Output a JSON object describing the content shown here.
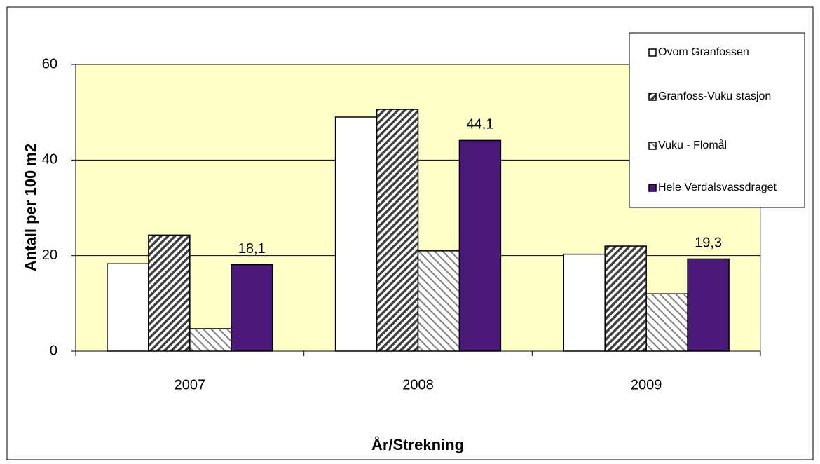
{
  "chart_data": {
    "type": "bar",
    "y_label": "Antall per 100 m2",
    "x_label": "År/Strekning",
    "categories": [
      "2007",
      "2008",
      "2009"
    ],
    "series": [
      {
        "name": "Ovom Granfossen",
        "color": "#ffffff",
        "pattern": "none",
        "values": [
          18.3,
          49.0,
          20.3
        ]
      },
      {
        "name": "Granfoss-Vuku stasjon",
        "color": "#404040",
        "pattern": "dense-hatch",
        "values": [
          24.3,
          50.6,
          22.0
        ]
      },
      {
        "name": "Vuku - Flomål",
        "color": "#808080",
        "pattern": "light-hatch",
        "values": [
          4.7,
          21.0,
          12.0
        ]
      },
      {
        "name": "Hele Verdalsvassdraget",
        "color": "#4b1a78",
        "pattern": "none",
        "values": [
          18.1,
          44.1,
          19.3
        ],
        "value_labels": [
          "18,1",
          "44,1",
          "19,3"
        ]
      }
    ],
    "ylim": [
      0,
      60
    ],
    "yticks": [
      0,
      20,
      40,
      60
    ],
    "grid": true,
    "legend": "top-right"
  }
}
